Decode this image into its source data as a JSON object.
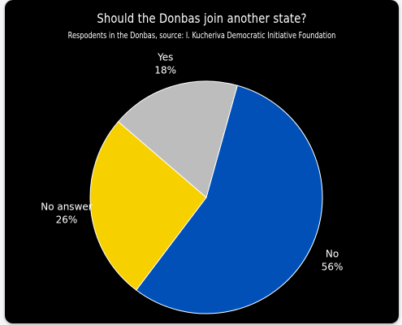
{
  "chart_data": {
    "type": "pie",
    "title": "Should the Donbas join another state?",
    "subtitle": "Respodents in the Donbas, source: I. Kucheriva Democratic Initiative Foundation",
    "slices": [
      {
        "label": "No",
        "value": 56,
        "value_label": "56%",
        "color": "#0050b8"
      },
      {
        "label": "No answer",
        "value": 26,
        "value_label": "26%",
        "color": "#f7d000"
      },
      {
        "label": "Yes",
        "value": 18,
        "value_label": "18%",
        "color": "#bdbdbd"
      }
    ]
  }
}
